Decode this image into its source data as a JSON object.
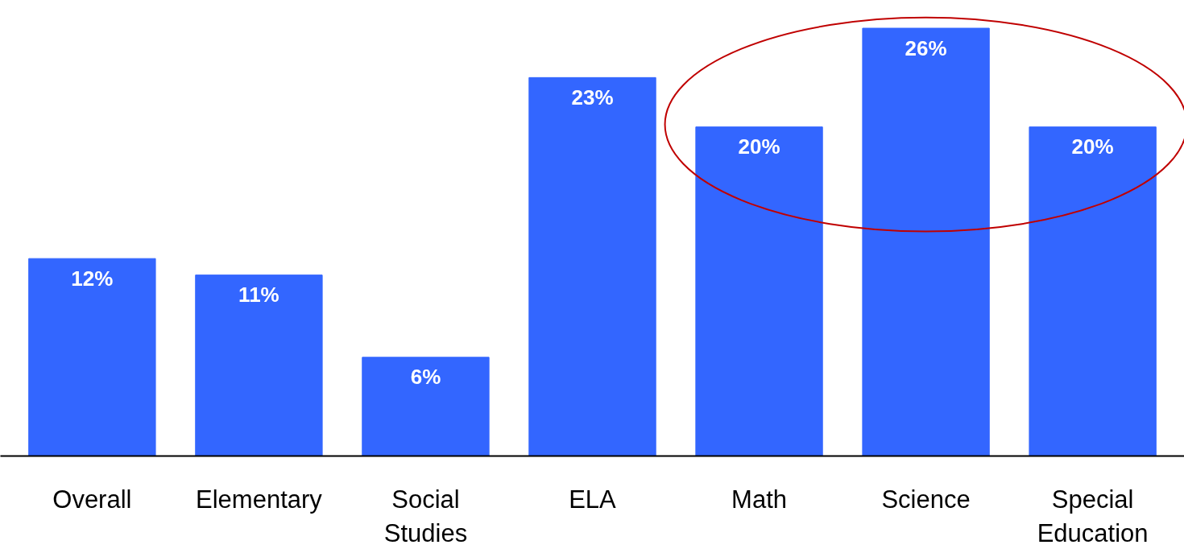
{
  "chart_data": {
    "type": "bar",
    "categories": [
      "Overall",
      "Elementary",
      "Social Studies",
      "ELA",
      "Math",
      "Science",
      "Special Education"
    ],
    "values": [
      12,
      11,
      6,
      23,
      20,
      26,
      20
    ],
    "value_labels": [
      "12%",
      "11%",
      "6%",
      "23%",
      "20%",
      "26%",
      "20%"
    ],
    "color": "#3366ff",
    "tick_labels": "x"
  }
}
